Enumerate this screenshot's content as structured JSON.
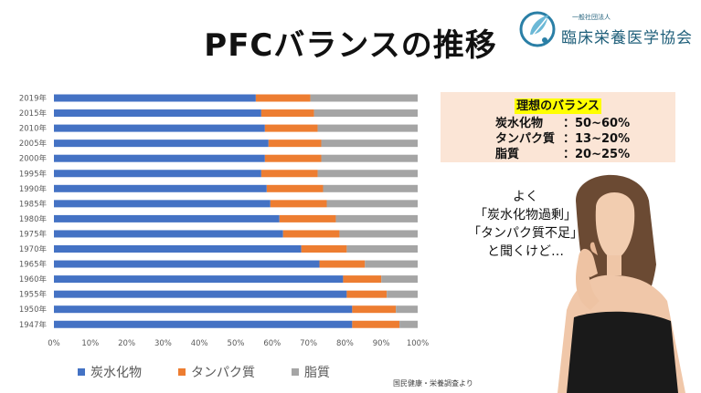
{
  "title": "PFCバランスの推移",
  "logo": {
    "small_text": "一般社団法人",
    "name": "臨床栄養医学協会"
  },
  "chart_data": {
    "type": "bar",
    "orientation": "horizontal",
    "stacked": true,
    "percent": true,
    "categories": [
      "2019年",
      "2015年",
      "2010年",
      "2005年",
      "2000年",
      "1995年",
      "1990年",
      "1985年",
      "1980年",
      "1975年",
      "1970年",
      "1965年",
      "1960年",
      "1955年",
      "1950年",
      "1947年"
    ],
    "series": [
      {
        "name": "炭水化物",
        "color": "#4472c4",
        "values": [
          55.5,
          57,
          58,
          59,
          58,
          57,
          58.5,
          59.5,
          62,
          63,
          68,
          73,
          79.5,
          80.5,
          82,
          82
        ]
      },
      {
        "name": "タンパク質",
        "color": "#ed7d31",
        "values": [
          15,
          14.5,
          14.5,
          14.5,
          15.5,
          15.5,
          15.5,
          15.5,
          15.5,
          15.5,
          12.5,
          12.5,
          10.5,
          11,
          12,
          13
        ]
      },
      {
        "name": "脂質",
        "color": "#a5a5a5",
        "values": [
          29.5,
          28.5,
          27.5,
          26.5,
          26.5,
          27.5,
          26,
          25,
          22.5,
          21.5,
          19.5,
          14.5,
          10,
          8.5,
          6,
          5
        ]
      }
    ],
    "x_ticks": [
      "0%",
      "10%",
      "20%",
      "30%",
      "40%",
      "50%",
      "60%",
      "70%",
      "80%",
      "90%",
      "100%"
    ],
    "xlim": [
      0,
      100
    ],
    "grid": false,
    "legend_position": "bottom-left"
  },
  "source": "国民健康・栄養調査より",
  "ideal": {
    "title": "理想のバランス",
    "rows": [
      {
        "name": "炭水化物",
        "value": "：50~60%"
      },
      {
        "name": "タンパク質",
        "value": "：13~20%"
      },
      {
        "name": "脂質",
        "value": "：20~25%"
      }
    ]
  },
  "quote": {
    "lines": [
      "よく",
      "「炭水化物過剰」",
      "「タンパク質不足」",
      "と聞くけど…"
    ]
  },
  "icons": {
    "logo": "leaf-circle-logo",
    "woman": "thinking-woman-illustration"
  }
}
